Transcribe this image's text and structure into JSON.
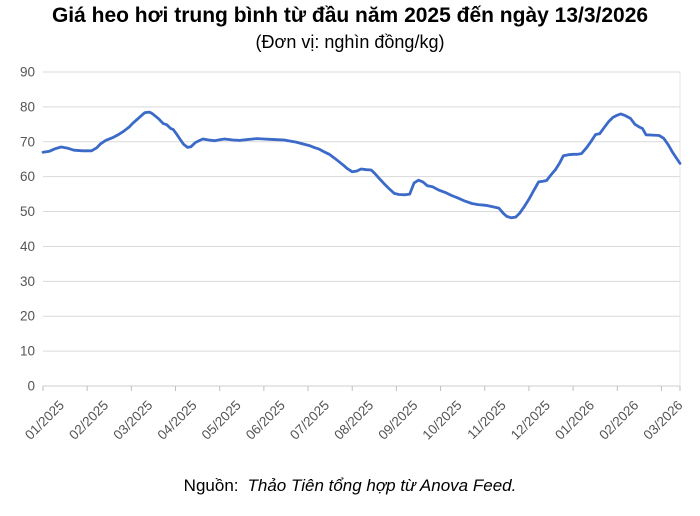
{
  "chart": {
    "title": "Giá heo hơi trung bình từ đầu năm 2025 đến ngày 13/3/2026",
    "subtitle": "(Đơn vị: nghìn đồng/kg)",
    "source_prefix": "Nguồn:",
    "source_note": "Thảo Tiên tổng hợp từ Anova Feed."
  },
  "chart_data": {
    "type": "line",
    "title": "Giá heo hơi trung bình từ đầu năm 2025 đến ngày 13/3/2026",
    "subtitle": "(Đơn vị: nghìn đồng/kg)",
    "ylabel": "nghìn đồng/kg",
    "xlabel": "",
    "ylim": [
      0,
      90
    ],
    "y_ticks": [
      0,
      10,
      20,
      30,
      40,
      50,
      60,
      70,
      80,
      90
    ],
    "x_tick_labels": [
      "01/2025",
      "02/2025",
      "03/2025",
      "04/2025",
      "05/2025",
      "06/2025",
      "07/2025",
      "08/2025",
      "09/2025",
      "10/2025",
      "11/2025",
      "12/2025",
      "01/2026",
      "02/2026",
      "03/2026"
    ],
    "xlim_months": [
      0,
      14.42
    ],
    "grid": "horizontal",
    "legend": "none",
    "line_color": "#3b6ac8",
    "grid_color": "#d9d9d9",
    "axis_text_color": "#555555",
    "series": [
      {
        "name": "Giá heo hơi trung bình",
        "x_months": [
          0.0,
          0.15,
          0.27,
          0.41,
          0.55,
          0.7,
          0.9,
          1.1,
          1.22,
          1.3,
          1.42,
          1.58,
          1.7,
          1.81,
          1.95,
          2.03,
          2.12,
          2.2,
          2.3,
          2.4,
          2.46,
          2.55,
          2.62,
          2.72,
          2.8,
          2.89,
          2.95,
          3.02,
          3.1,
          3.18,
          3.27,
          3.35,
          3.45,
          3.55,
          3.62,
          3.75,
          3.88,
          4.0,
          4.11,
          4.3,
          4.45,
          4.6,
          4.75,
          4.85,
          5.0,
          5.12,
          5.3,
          5.46,
          5.6,
          5.73,
          5.88,
          6.03,
          6.15,
          6.25,
          6.38,
          6.48,
          6.6,
          6.7,
          6.8,
          6.88,
          7.0,
          7.1,
          7.2,
          7.32,
          7.43,
          7.52,
          7.61,
          7.72,
          7.83,
          7.95,
          8.06,
          8.2,
          8.3,
          8.4,
          8.5,
          8.6,
          8.7,
          8.82,
          8.95,
          9.12,
          9.25,
          9.41,
          9.55,
          9.71,
          9.85,
          10.02,
          10.18,
          10.32,
          10.42,
          10.5,
          10.6,
          10.7,
          10.79,
          10.9,
          11.0,
          11.1,
          11.22,
          11.32,
          11.4,
          11.5,
          11.6,
          11.7,
          11.78,
          11.9,
          12.01,
          12.1,
          12.19,
          12.3,
          12.4,
          12.51,
          12.6,
          12.7,
          12.8,
          12.9,
          12.98,
          13.08,
          13.18,
          13.3,
          13.4,
          13.5,
          13.57,
          13.65,
          13.8,
          13.95,
          14.05,
          14.15,
          14.25,
          14.33,
          14.42
        ],
        "values": [
          67.0,
          67.3,
          68.0,
          68.5,
          68.2,
          67.6,
          67.4,
          67.4,
          68.3,
          69.4,
          70.4,
          71.2,
          72.0,
          72.9,
          74.2,
          75.3,
          76.3,
          77.2,
          78.3,
          78.5,
          78.2,
          77.3,
          76.6,
          75.2,
          74.9,
          73.8,
          73.5,
          72.3,
          70.8,
          69.3,
          68.4,
          68.6,
          69.8,
          70.4,
          70.8,
          70.5,
          70.3,
          70.6,
          70.8,
          70.5,
          70.4,
          70.6,
          70.8,
          70.9,
          70.8,
          70.7,
          70.6,
          70.5,
          70.2,
          69.9,
          69.4,
          68.9,
          68.3,
          67.9,
          67.0,
          66.4,
          65.3,
          64.3,
          63.3,
          62.4,
          61.4,
          61.6,
          62.2,
          62.0,
          61.9,
          60.8,
          59.5,
          58.0,
          56.6,
          55.2,
          54.9,
          54.8,
          55.0,
          58.2,
          59.0,
          58.5,
          57.4,
          57.1,
          56.2,
          55.4,
          54.6,
          53.8,
          53.0,
          52.3,
          52.0,
          51.8,
          51.4,
          51.0,
          49.5,
          48.6,
          48.2,
          48.4,
          49.5,
          51.5,
          53.5,
          55.8,
          58.5,
          58.7,
          58.9,
          60.5,
          62.0,
          64.0,
          66.0,
          66.3,
          66.4,
          66.4,
          66.6,
          68.2,
          70.0,
          72.1,
          72.3,
          74.0,
          75.7,
          77.0,
          77.5,
          78.0,
          77.5,
          76.7,
          75.0,
          74.2,
          73.8,
          72.0,
          71.9,
          71.8,
          71.0,
          69.2,
          67.0,
          65.5,
          63.8
        ]
      }
    ]
  }
}
